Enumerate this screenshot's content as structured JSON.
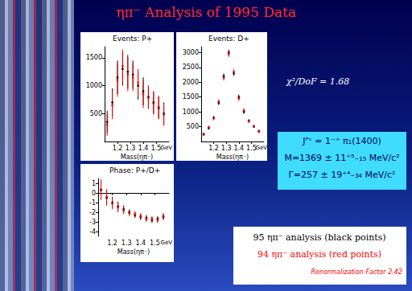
{
  "chart_data": [
    {
      "type": "scatter",
      "title": "Events: P+",
      "xlabel": "Mass(ηπ⁻)",
      "annotations": [
        {
          "text": "GeV"
        }
      ],
      "x": [
        1.12,
        1.16,
        1.2,
        1.24,
        1.28,
        1.32,
        1.36,
        1.4,
        1.44,
        1.48,
        1.52,
        1.56
      ],
      "series": [
        {
          "name": "95 ηπ⁻ analysis (black points)",
          "color": "#000000",
          "values": [
            350,
            700,
            1150,
            1300,
            1250,
            1200,
            1000,
            900,
            800,
            700,
            600,
            500
          ],
          "errors": [
            200,
            250,
            300,
            300,
            300,
            250,
            250,
            250,
            200,
            200,
            200,
            200
          ]
        },
        {
          "name": "94 ηπ⁻ analysis (red points)",
          "color": "#ff0000",
          "values": [
            300,
            650,
            1100,
            1350,
            1200,
            1150,
            1050,
            850,
            780,
            680,
            620,
            480
          ],
          "errors": [
            200,
            250,
            300,
            300,
            300,
            250,
            250,
            250,
            200,
            200,
            200,
            200
          ]
        }
      ],
      "xlim": [
        1.1,
        1.6
      ],
      "xticks": [
        {
          "value": 1.2,
          "label": "1.2"
        },
        {
          "value": 1.3,
          "label": "1.3"
        },
        {
          "value": 1.4,
          "label": "1.4"
        },
        {
          "value": 1.5,
          "label": "1.5"
        }
      ],
      "ylim": [
        0,
        1700
      ],
      "yticks": [
        500,
        1000,
        1500
      ],
      "grid": false
    },
    {
      "type": "scatter",
      "title": "Events: D+",
      "xlabel": "Mass(ηπ⁻)",
      "annotations": [
        {
          "text": "GeV"
        }
      ],
      "x": [
        1.12,
        1.16,
        1.2,
        1.24,
        1.28,
        1.32,
        1.36,
        1.4,
        1.44,
        1.48,
        1.52,
        1.56
      ],
      "series": [
        {
          "name": "95 ηπ⁻ analysis (black points)",
          "color": "#000000",
          "values": [
            250,
            450,
            800,
            1300,
            2200,
            3000,
            2300,
            1500,
            1000,
            700,
            500,
            350
          ],
          "errors": [
            40,
            50,
            60,
            70,
            90,
            100,
            90,
            80,
            60,
            50,
            40,
            40
          ]
        },
        {
          "name": "94 ηπ⁻ analysis (red points)",
          "color": "#ff0000",
          "values": [
            230,
            480,
            780,
            1350,
            2150,
            2950,
            2350,
            1450,
            1050,
            680,
            520,
            330
          ],
          "errors": [
            40,
            50,
            60,
            70,
            90,
            100,
            90,
            80,
            60,
            50,
            40,
            40
          ]
        }
      ],
      "xlim": [
        1.1,
        1.6
      ],
      "xticks": [
        {
          "value": 1.2,
          "label": "1.2"
        },
        {
          "value": 1.3,
          "label": "1.3"
        },
        {
          "value": 1.4,
          "label": "1.4"
        },
        {
          "value": 1.5,
          "label": "1.5"
        }
      ],
      "ylim": [
        0,
        3200
      ],
      "yticks": [
        500,
        1000,
        1500,
        2000,
        2500,
        3000
      ],
      "grid": false
    },
    {
      "type": "scatter",
      "title": "Phase: P+/D+",
      "xlabel": "Mass(ηπ⁻)",
      "annotations": [
        {
          "text": "GeV"
        }
      ],
      "x": [
        1.12,
        1.16,
        1.2,
        1.24,
        1.28,
        1.32,
        1.36,
        1.4,
        1.44,
        1.48,
        1.52,
        1.56
      ],
      "series": [
        {
          "name": "95 ηπ⁻ analysis (black points)",
          "color": "#000000",
          "values": [
            0.3,
            -0.5,
            -1.0,
            -1.4,
            -1.7,
            -2.0,
            -2.3,
            -2.5,
            -2.6,
            -2.8,
            -2.7,
            -2.5
          ],
          "errors": [
            1.0,
            0.8,
            0.6,
            0.5,
            0.4,
            0.3,
            0.3,
            0.3,
            0.3,
            0.3,
            0.3,
            0.3
          ]
        },
        {
          "name": "94 ηπ⁻ analysis (red points)",
          "color": "#ff0000",
          "values": [
            0.4,
            -0.4,
            -1.1,
            -1.5,
            -1.8,
            -2.1,
            -2.2,
            -2.4,
            -2.7,
            -2.7,
            -2.8,
            -2.4
          ],
          "errors": [
            1.0,
            0.8,
            0.6,
            0.5,
            0.4,
            0.3,
            0.3,
            0.3,
            0.3,
            0.3,
            0.3,
            0.3
          ]
        }
      ],
      "xlim": [
        1.1,
        1.6
      ],
      "xticks": [
        {
          "value": 1.2,
          "label": "1.2"
        },
        {
          "value": 1.3,
          "label": "1.3"
        },
        {
          "value": 1.4,
          "label": "1.4"
        },
        {
          "value": 1.5,
          "label": "1.5"
        }
      ],
      "ylim": [
        -4.5,
        1.5
      ],
      "yticks": [
        1,
        0,
        -1,
        -2,
        -3,
        -4
      ],
      "grid": false
    }
  ],
  "slide": {
    "title": "ηπ⁻ Analysis of 1995 Data",
    "chi2": "χ²/DoF = 1.68",
    "result_lines": [
      "Jᴾᶜ = 1⁻⁺ π₁(1400)",
      "M=1369 ± 11⁺⁵₋₁₅ MeV/c²",
      "Γ=257 ± 19⁺⁴₋₃₄ MeV/c²"
    ],
    "note": "Renormalization Factor 2.42"
  }
}
